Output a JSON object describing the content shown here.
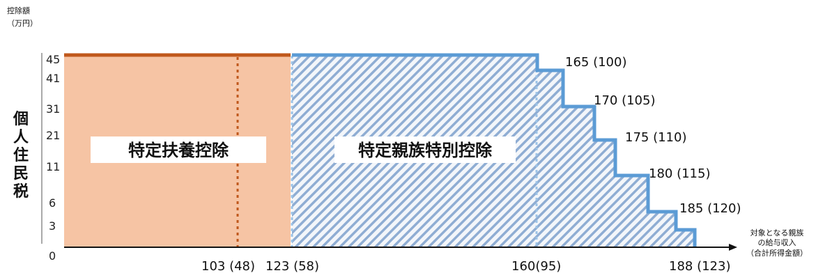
{
  "chart_data": {
    "type": "area",
    "ylabel_top": "控除額",
    "ylabel_unit": "（万円）",
    "vertical_label": "個人住民税",
    "x_axis_caption": [
      "対象となる親族",
      "の給与収入",
      "（合計所得金額）"
    ],
    "y_ticks": [
      "45",
      "41",
      "31",
      "21",
      "11",
      "6",
      "3"
    ],
    "y_zero": "0",
    "y_values": [
      45,
      41,
      31,
      21,
      11,
      6,
      3
    ],
    "x_ticks": [
      "103 (48)",
      "123 (58)",
      "160(95)",
      "188 (123)"
    ],
    "regions": [
      {
        "name": "特定扶養控除",
        "x_from": 0,
        "x_to": 123,
        "value": 45,
        "color": "#f6c4a4",
        "line_color": "#c0581c"
      },
      {
        "name": "特定親族特別控除",
        "x_from": 123,
        "x_to": 188,
        "color": "#7fa6d6",
        "line_color": "#5b9bd5"
      }
    ],
    "steps": [
      {
        "label": "165 (100)",
        "x": 165,
        "value": 41
      },
      {
        "label": "170 (105)",
        "x": 170,
        "value": 31
      },
      {
        "label": "175 (110)",
        "x": 175,
        "value": 21
      },
      {
        "label": "180 (115)",
        "x": 180,
        "value": 11
      },
      {
        "label": "185 (120)",
        "x": 185,
        "value": 6
      }
    ],
    "step_end": {
      "x": 188,
      "value": 3
    },
    "dotted_line_x": 103
  }
}
